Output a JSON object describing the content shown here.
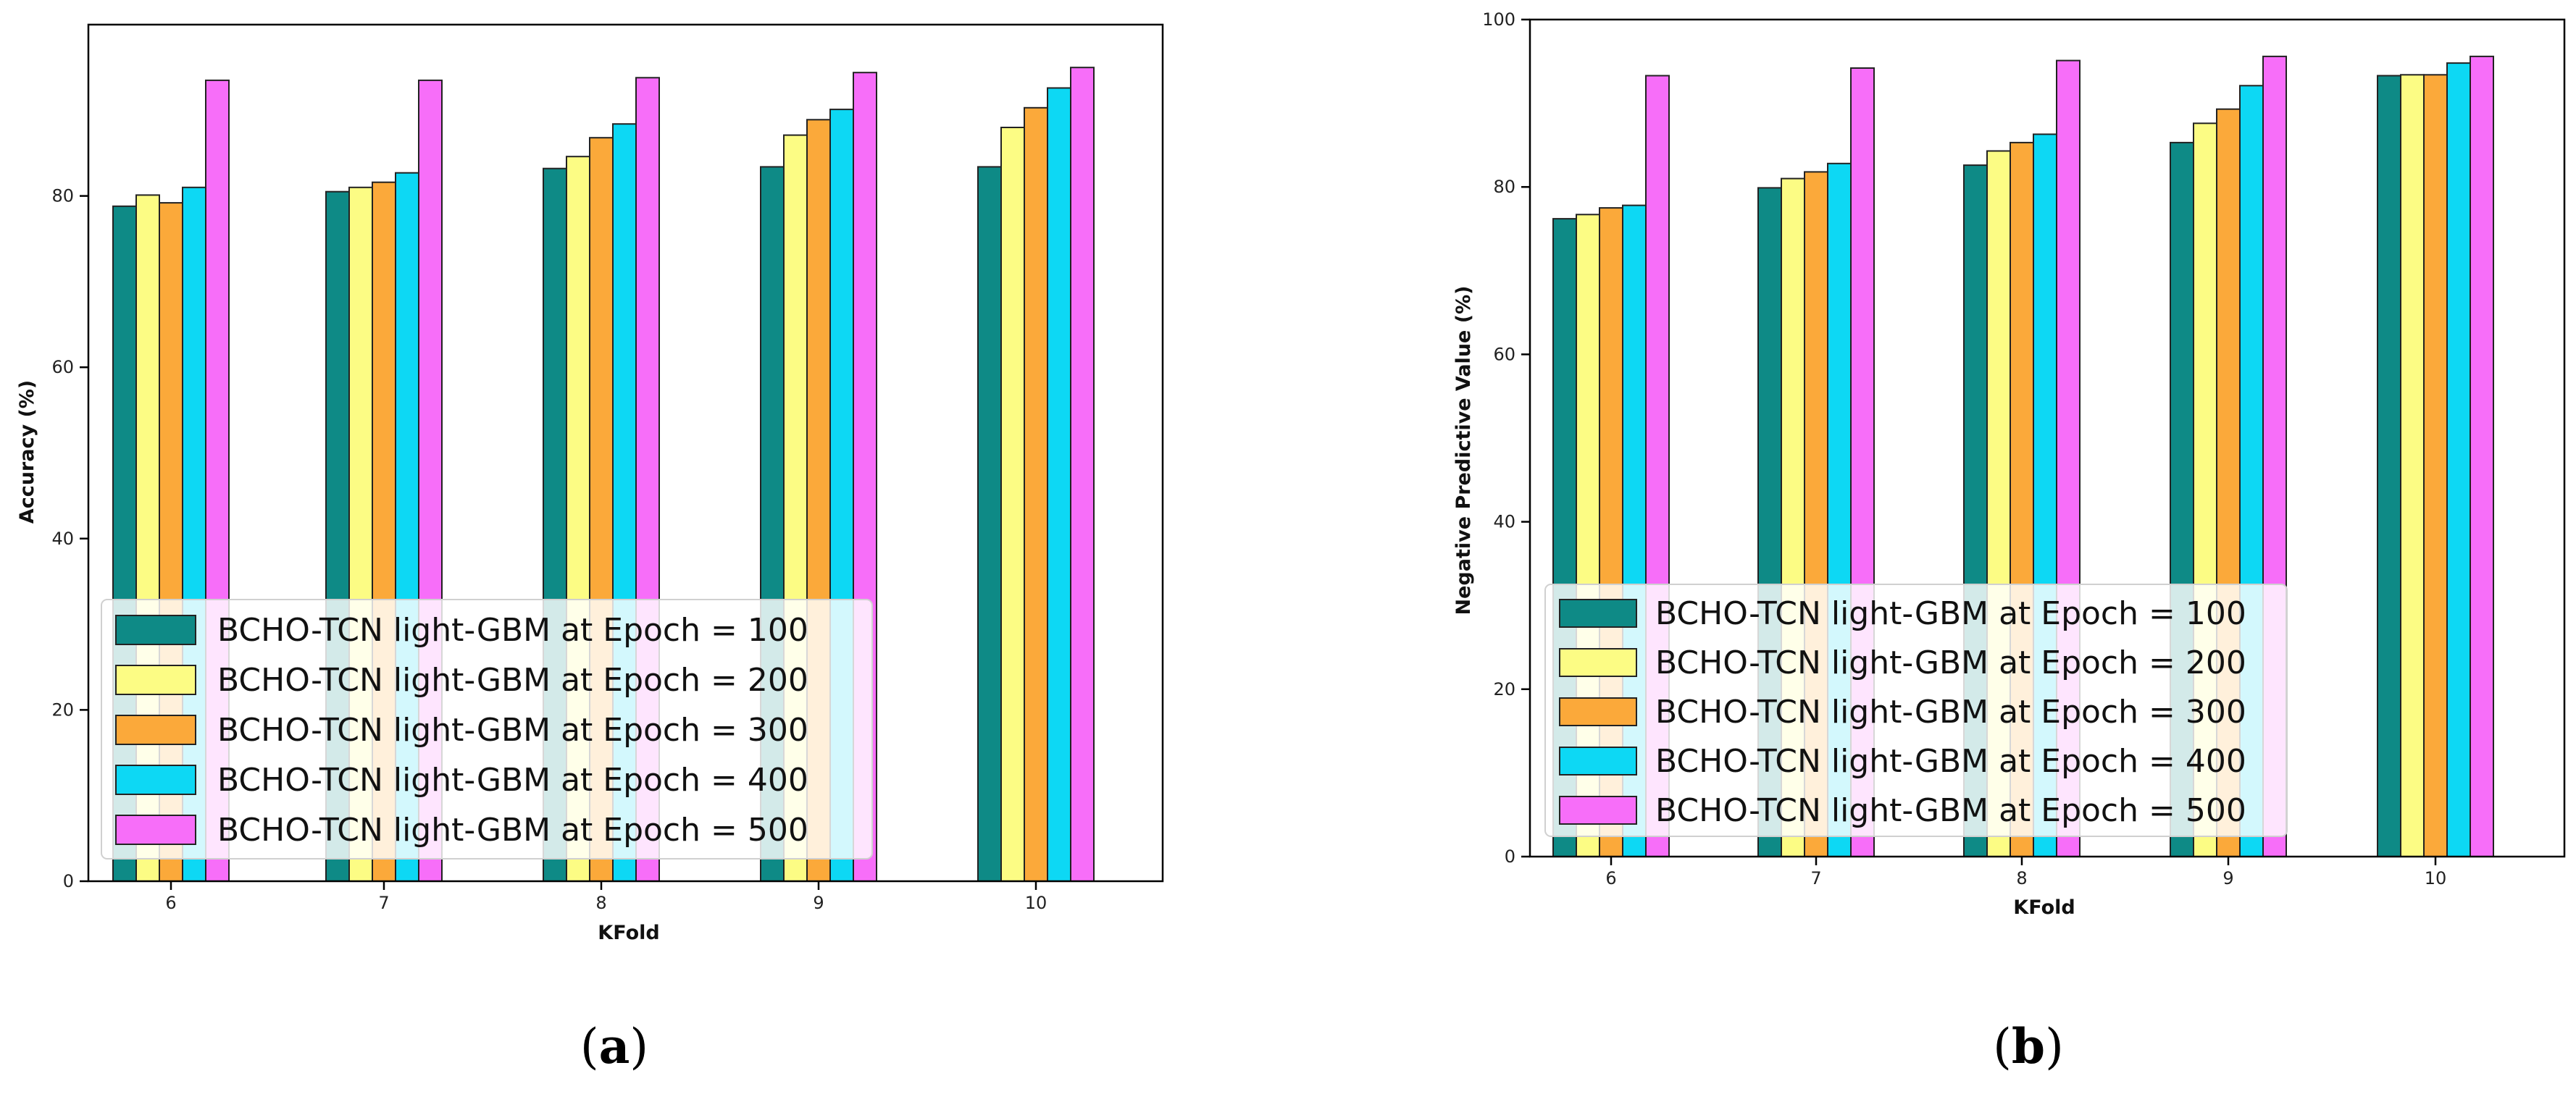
{
  "chart_data": [
    {
      "type": "bar",
      "panel_label": "a",
      "xlabel": "KFold",
      "ylabel": "Accuracy (%)",
      "categories": [
        "6",
        "7",
        "8",
        "9",
        "10"
      ],
      "ylim": [
        0,
        100
      ],
      "yticks": [
        0,
        20,
        40,
        60,
        80
      ],
      "grid": false,
      "legend_position": "lower-left",
      "series": [
        {
          "name": "BCHO-TCN light-GBM at Epoch = 100",
          "color": "#0e8a86",
          "values": [
            78.8,
            80.5,
            83.2,
            83.4,
            83.4
          ]
        },
        {
          "name": "BCHO-TCN light-GBM at Epoch = 200",
          "color": "#fcfc84",
          "values": [
            80.1,
            81.0,
            84.6,
            87.1,
            88.0
          ]
        },
        {
          "name": "BCHO-TCN light-GBM at Epoch = 300",
          "color": "#fba93a",
          "values": [
            79.2,
            81.6,
            86.8,
            88.9,
            90.3
          ]
        },
        {
          "name": "BCHO-TCN light-GBM at Epoch = 400",
          "color": "#0dd8f4",
          "values": [
            81.0,
            82.7,
            88.4,
            90.1,
            92.6
          ]
        },
        {
          "name": "BCHO-TCN light-GBM at Epoch = 500",
          "color": "#f76ef9",
          "values": [
            93.5,
            93.5,
            93.8,
            94.4,
            95.0
          ]
        }
      ]
    },
    {
      "type": "bar",
      "panel_label": "b",
      "xlabel": "KFold",
      "ylabel": "Negative Predictive Value (%)",
      "categories": [
        "6",
        "7",
        "8",
        "9",
        "10"
      ],
      "ylim": [
        0,
        100
      ],
      "yticks": [
        0,
        20,
        40,
        60,
        80,
        100
      ],
      "grid": false,
      "legend_position": "lower-left",
      "series": [
        {
          "name": "BCHO-TCN light-GBM at Epoch = 100",
          "color": "#0e8a86",
          "values": [
            76.2,
            79.9,
            82.6,
            85.3,
            93.3
          ]
        },
        {
          "name": "BCHO-TCN light-GBM at Epoch = 200",
          "color": "#fcfc84",
          "values": [
            76.7,
            81.0,
            84.3,
            87.6,
            93.4
          ]
        },
        {
          "name": "BCHO-TCN light-GBM at Epoch = 300",
          "color": "#fba93a",
          "values": [
            77.5,
            81.8,
            85.3,
            89.3,
            93.4
          ]
        },
        {
          "name": "BCHO-TCN light-GBM at Epoch = 400",
          "color": "#0dd8f4",
          "values": [
            77.8,
            82.8,
            86.3,
            92.1,
            94.8
          ]
        },
        {
          "name": "BCHO-TCN light-GBM at Epoch = 500",
          "color": "#f76ef9",
          "values": [
            93.3,
            94.2,
            95.1,
            95.6,
            95.6
          ]
        }
      ]
    }
  ]
}
